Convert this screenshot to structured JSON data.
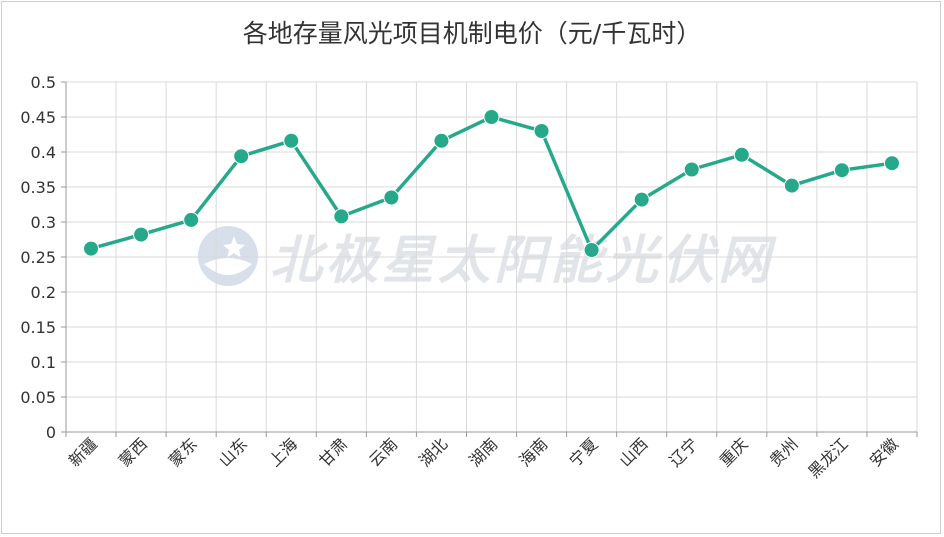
{
  "chart_data": {
    "type": "line",
    "title": "各地存量风光项目机制电价（元/千瓦时）",
    "categories": [
      "新疆",
      "蒙西",
      "蒙东",
      "山东",
      "上海",
      "甘肃",
      "云南",
      "湖北",
      "湖南",
      "海南",
      "宁夏",
      "山西",
      "辽宁",
      "重庆",
      "贵州",
      "黑龙江",
      "安徽"
    ],
    "values": [
      0.262,
      0.282,
      0.303,
      0.394,
      0.416,
      0.308,
      0.335,
      0.416,
      0.45,
      0.43,
      0.26,
      0.332,
      0.375,
      0.396,
      0.352,
      0.374,
      0.384
    ],
    "ylim": [
      0,
      0.5
    ],
    "yticks": [
      "0",
      "0.05",
      "0.1",
      "0.15",
      "0.2",
      "0.25",
      "0.3",
      "0.35",
      "0.4",
      "0.45",
      "0.5"
    ],
    "grid": true,
    "color": "#26a98b",
    "xlabel": "",
    "ylabel": ""
  },
  "watermark": "北极星太阳能光伏网"
}
